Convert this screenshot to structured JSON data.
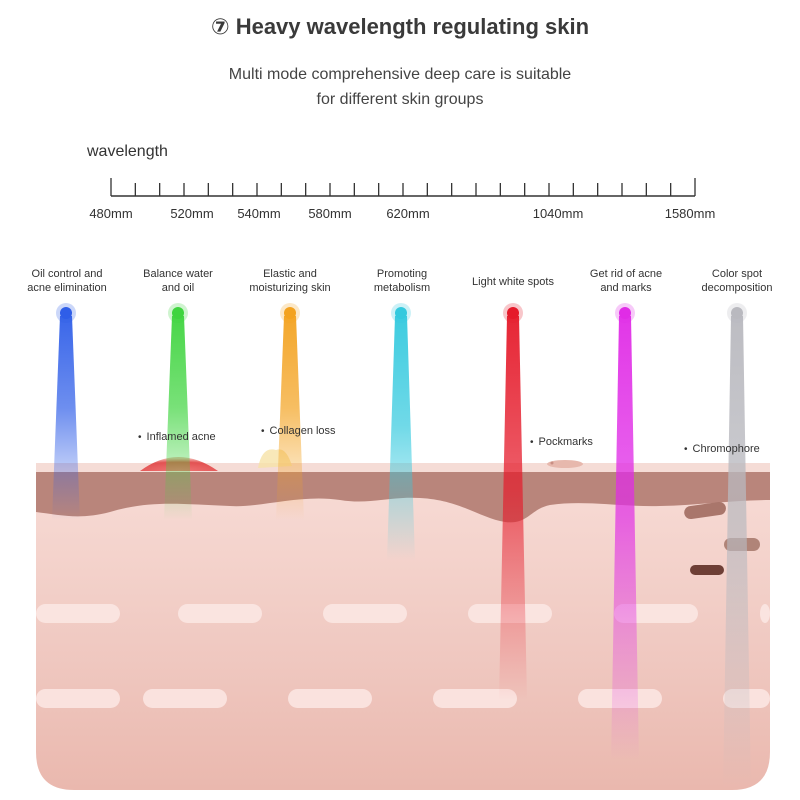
{
  "header": {
    "title": "⑦ Heavy wavelength regulating skin",
    "subtitle_line1": "Multi mode comprehensive deep care is suitable",
    "subtitle_line2": "for different skin groups"
  },
  "scale": {
    "label": "wavelength",
    "ticks": [
      "480mm",
      "520mm",
      "540mm",
      "580mm",
      "620mm",
      "1040mm",
      "1580mm"
    ]
  },
  "modes": [
    {
      "label_line1": "Oil control and",
      "label_line2": "acne elimination",
      "color": "#2f5ee8"
    },
    {
      "label_line1": "Balance water",
      "label_line2": "and oil",
      "color": "#3fd43f"
    },
    {
      "label_line1": "Elastic and",
      "label_line2": "moisturizing skin",
      "color": "#f3a21f"
    },
    {
      "label_line1": "Promoting",
      "label_line2": "metabolism",
      "color": "#33c9de"
    },
    {
      "label_line1": "Light white spots",
      "label_line2": "",
      "color": "#e51a2a"
    },
    {
      "label_line1": "Get rid of acne",
      "label_line2": "and marks",
      "color": "#e02ce6"
    },
    {
      "label_line1": "Color spot",
      "label_line2": "decomposition",
      "color": "#b9b9bf"
    }
  ],
  "annotations": {
    "inflamed_acne": "Inflamed acne",
    "collagen_loss": "Collagen loss",
    "pockmarks": "Pockmarks",
    "chromophore": "Chromophore"
  },
  "colors": {
    "skin_epidermis": "#b9857b",
    "skin_dermis": "#f3d4cd",
    "skin_surface": "#f7e3de"
  }
}
